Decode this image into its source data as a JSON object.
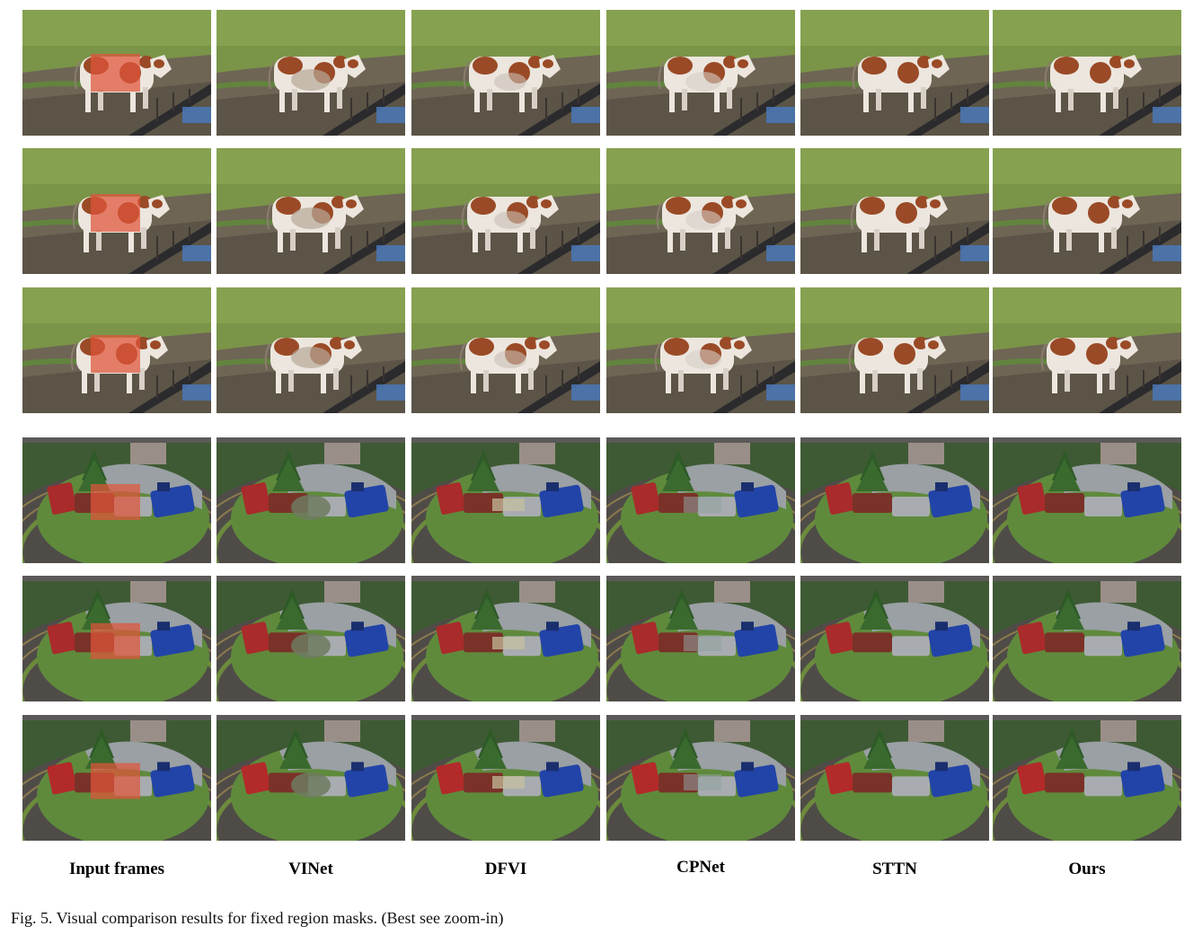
{
  "figure": {
    "columns": [
      "Input frames",
      "VINet",
      "DFVI",
      "CPNet",
      "STTN",
      "Ours"
    ],
    "caption": "Fig. 5.  Visual comparison results for fixed region masks. (Best see zoom-in)",
    "rows": [
      {
        "scene": "cow"
      },
      {
        "scene": "cow"
      },
      {
        "scene": "cow"
      },
      {
        "scene": "train"
      },
      {
        "scene": "train"
      },
      {
        "scene": "train"
      }
    ],
    "mask_color": "#e0553a",
    "colors": {
      "grass": "#7a9448",
      "soil": "#6e6555",
      "cow_white": "#ece6de",
      "cow_brown": "#9a4a26",
      "track": "#4f4c48",
      "train_red": "#b32a2a",
      "train_blue": "#2244a8",
      "train_grey": "#a8acb0",
      "lawn": "#5f8a3c"
    }
  }
}
